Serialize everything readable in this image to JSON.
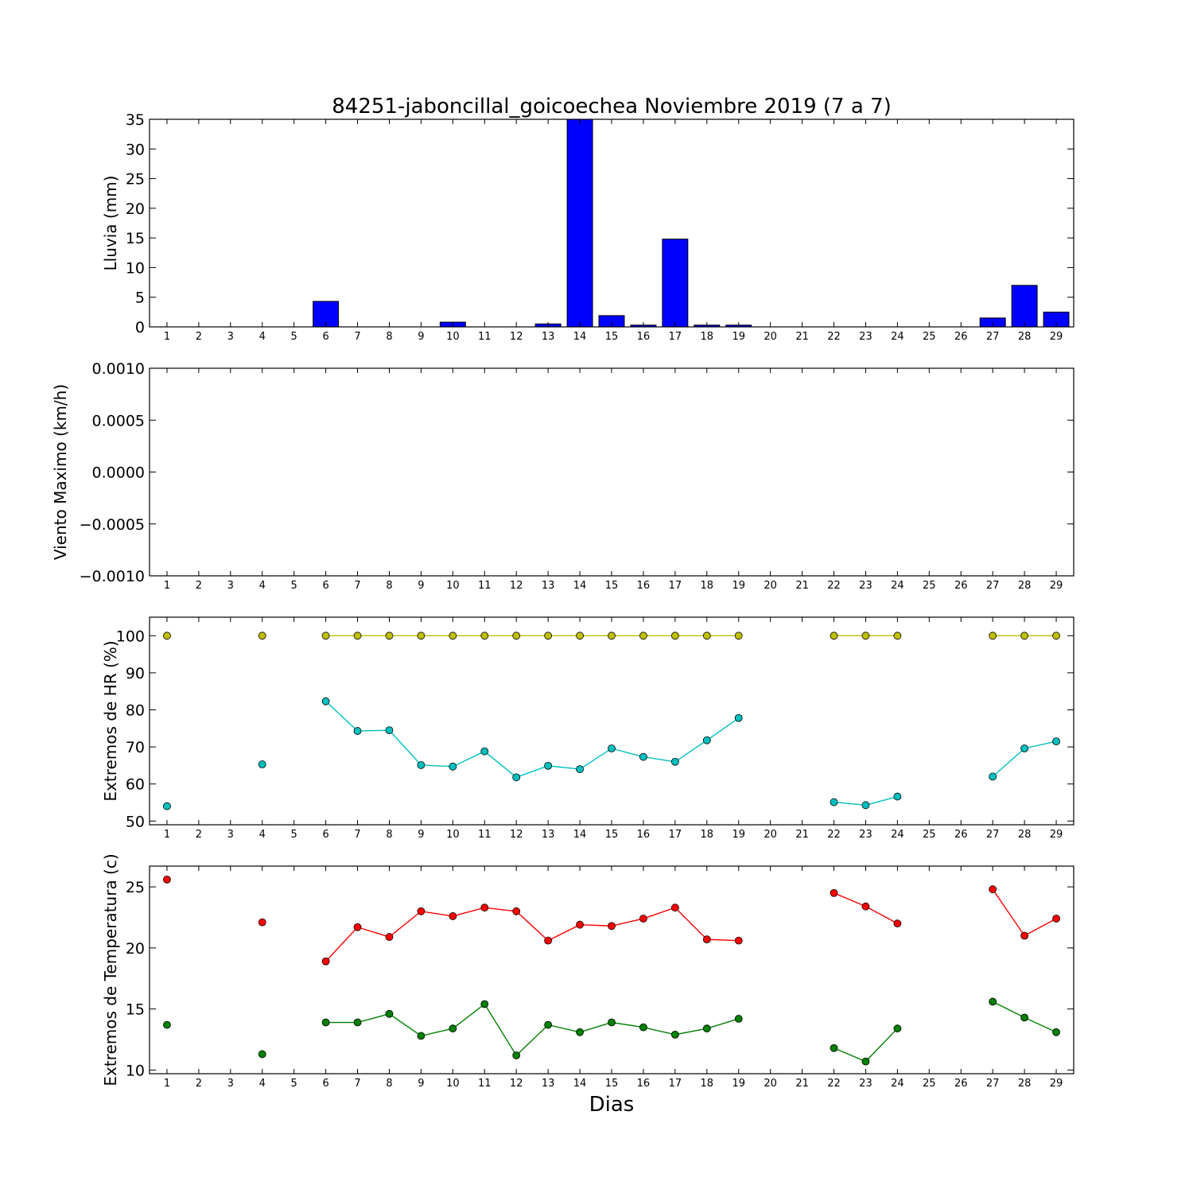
{
  "figure": {
    "title": "84251-jaboncillal_goicoechea Noviembre 2019  (7 a 7)",
    "xlabel": "Dias"
  },
  "chart_data": [
    {
      "type": "bar",
      "ylabel": "Lluvia (mm)",
      "ylim": [
        0,
        35
      ],
      "yticks": [
        "0",
        "5",
        "10",
        "15",
        "20",
        "25",
        "30",
        "35"
      ],
      "ytick_values": [
        0,
        5,
        10,
        15,
        20,
        25,
        30,
        35
      ],
      "categories": [
        "1",
        "2",
        "3",
        "4",
        "5",
        "6",
        "7",
        "8",
        "9",
        "10",
        "11",
        "12",
        "13",
        "14",
        "15",
        "16",
        "17",
        "18",
        "19",
        "20",
        "21",
        "22",
        "23",
        "24",
        "25",
        "26",
        "27",
        "28",
        "29"
      ],
      "values": [
        0,
        0,
        0,
        0,
        0,
        4.3,
        0,
        0,
        0,
        0.8,
        0,
        0,
        0.5,
        35,
        1.9,
        0.3,
        14.8,
        0.3,
        0.3,
        0,
        0,
        0,
        0,
        0,
        0,
        0,
        1.5,
        7.0,
        2.5
      ],
      "color": "#0000ff"
    },
    {
      "type": "line",
      "ylabel": "Viento Maximo (km/h)",
      "ylim": [
        -0.001,
        0.001
      ],
      "yticks": [
        "−0.0010",
        "−0.0005",
        "0.0000",
        "0.0005",
        "0.0010"
      ],
      "ytick_values": [
        -0.001,
        -0.0005,
        0,
        0.0005,
        0.001
      ],
      "categories": [
        "1",
        "2",
        "3",
        "4",
        "5",
        "6",
        "7",
        "8",
        "9",
        "10",
        "11",
        "12",
        "13",
        "14",
        "15",
        "16",
        "17",
        "18",
        "19",
        "20",
        "21",
        "22",
        "23",
        "24",
        "25",
        "26",
        "27",
        "28",
        "29"
      ],
      "series": []
    },
    {
      "type": "line",
      "ylabel": "Extremos de HR (%)",
      "ylim": [
        49,
        105
      ],
      "yticks": [
        "50",
        "60",
        "70",
        "80",
        "90",
        "100"
      ],
      "ytick_values": [
        50,
        60,
        70,
        80,
        90,
        100
      ],
      "categories": [
        "1",
        "2",
        "3",
        "4",
        "5",
        "6",
        "7",
        "8",
        "9",
        "10",
        "11",
        "12",
        "13",
        "14",
        "15",
        "16",
        "17",
        "18",
        "19",
        "20",
        "21",
        "22",
        "23",
        "24",
        "25",
        "26",
        "27",
        "28",
        "29"
      ],
      "series": [
        {
          "color": "#bfbf00",
          "values": [
            100,
            null,
            null,
            100,
            null,
            100,
            100,
            100,
            100,
            100,
            100,
            100,
            100,
            100,
            100,
            100,
            100,
            100,
            100,
            null,
            null,
            100,
            100,
            100,
            null,
            null,
            100,
            100,
            100
          ]
        },
        {
          "color": "#00bfbf",
          "values": [
            54,
            null,
            null,
            65.3,
            null,
            82.3,
            74.3,
            74.5,
            65.1,
            64.7,
            68.8,
            61.8,
            64.9,
            64.0,
            69.6,
            67.3,
            66.0,
            71.8,
            77.8,
            null,
            null,
            55.1,
            54.3,
            56.6,
            null,
            null,
            62.0,
            69.6,
            71.5
          ]
        }
      ]
    },
    {
      "type": "line",
      "ylabel": "Extremos de Temperatura (c)",
      "ylim": [
        9.7,
        26.7
      ],
      "yticks": [
        "10",
        "15",
        "20",
        "25"
      ],
      "ytick_values": [
        10,
        15,
        20,
        25
      ],
      "categories": [
        "1",
        "2",
        "3",
        "4",
        "5",
        "6",
        "7",
        "8",
        "9",
        "10",
        "11",
        "12",
        "13",
        "14",
        "15",
        "16",
        "17",
        "18",
        "19",
        "20",
        "21",
        "22",
        "23",
        "24",
        "25",
        "26",
        "27",
        "28",
        "29"
      ],
      "series": [
        {
          "color": "#ff0000",
          "values": [
            25.6,
            null,
            null,
            22.1,
            null,
            18.9,
            21.7,
            20.9,
            23.0,
            22.6,
            23.3,
            23.0,
            20.6,
            21.9,
            21.8,
            22.4,
            23.3,
            20.7,
            20.6,
            null,
            null,
            24.5,
            23.4,
            22.0,
            null,
            null,
            24.8,
            21.0,
            22.4
          ]
        },
        {
          "color": "#008000",
          "values": [
            13.7,
            null,
            null,
            11.3,
            null,
            13.9,
            13.9,
            14.6,
            12.8,
            13.4,
            15.4,
            11.2,
            13.7,
            13.1,
            13.9,
            13.5,
            12.9,
            13.4,
            14.2,
            null,
            null,
            11.8,
            10.7,
            13.4,
            null,
            null,
            15.6,
            14.3,
            13.1
          ]
        }
      ]
    }
  ]
}
